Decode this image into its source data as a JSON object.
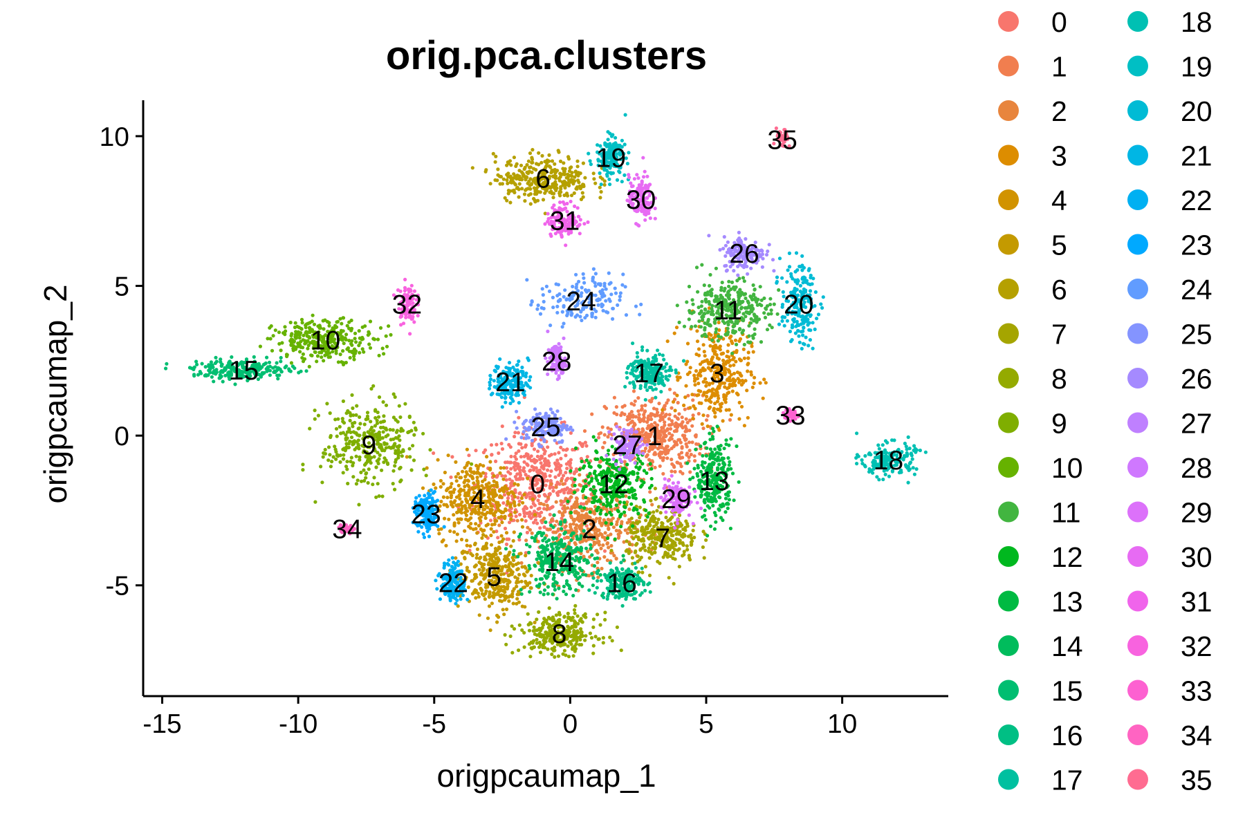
{
  "chart_data": {
    "type": "scatter",
    "title": "orig.pca.clusters",
    "xlabel": "origpcaumap_1",
    "ylabel": "origpcaumap_2",
    "xlim": [
      -15.7,
      13.9
    ],
    "ylim": [
      -8.7,
      11.2
    ],
    "x_ticks": [
      -15,
      -10,
      -5,
      0,
      5,
      10
    ],
    "y_ticks": [
      -5,
      0,
      5,
      10
    ],
    "x_tick_labels": [
      "-15",
      "-10",
      "-5",
      "0",
      "5",
      "10"
    ],
    "y_tick_labels": [
      "-5",
      "0",
      "5",
      "10"
    ],
    "grid": false,
    "legend_placement": "right",
    "legend_columns": 2,
    "series": [
      {
        "name": "0",
        "color": "#F8766D",
        "label_pos": [
          -1.2,
          -1.6
        ],
        "spread": [
          2.0,
          1.6
        ],
        "n": 520
      },
      {
        "name": "1",
        "color": "#F17E4F",
        "label_pos": [
          3.1,
          0.0
        ],
        "spread": [
          1.6,
          1.2
        ],
        "n": 420
      },
      {
        "name": "2",
        "color": "#E8853D",
        "label_pos": [
          0.7,
          -3.1
        ],
        "spread": [
          1.6,
          1.2
        ],
        "n": 380
      },
      {
        "name": "3",
        "color": "#DD8D00",
        "label_pos": [
          5.4,
          2.1
        ],
        "spread": [
          1.1,
          1.5
        ],
        "n": 320
      },
      {
        "name": "4",
        "color": "#D19300",
        "label_pos": [
          -3.4,
          -2.1
        ],
        "spread": [
          1.4,
          1.2
        ],
        "n": 360
      },
      {
        "name": "5",
        "color": "#C49A00",
        "label_pos": [
          -2.8,
          -4.7
        ],
        "spread": [
          1.2,
          1.1
        ],
        "n": 320
      },
      {
        "name": "6",
        "color": "#B5A000",
        "label_pos": [
          -1.0,
          8.6
        ],
        "spread": [
          1.6,
          0.7
        ],
        "n": 320
      },
      {
        "name": "7",
        "color": "#A5A500",
        "label_pos": [
          3.4,
          -3.4
        ],
        "spread": [
          1.2,
          0.9
        ],
        "n": 300
      },
      {
        "name": "8",
        "color": "#94AA00",
        "label_pos": [
          -0.4,
          -6.6
        ],
        "spread": [
          1.3,
          0.6
        ],
        "n": 280
      },
      {
        "name": "9",
        "color": "#7FAE00",
        "label_pos": [
          -7.4,
          -0.3
        ],
        "spread": [
          1.6,
          1.3
        ],
        "n": 320
      },
      {
        "name": "10",
        "color": "#66B200",
        "label_pos": [
          -9.0,
          3.2
        ],
        "spread": [
          1.7,
          0.6
        ],
        "n": 300
      },
      {
        "name": "11",
        "color": "#42B540",
        "label_pos": [
          5.8,
          4.2
        ],
        "spread": [
          1.4,
          0.9
        ],
        "n": 320
      },
      {
        "name": "12",
        "color": "#00B81F",
        "label_pos": [
          1.6,
          -1.6
        ],
        "spread": [
          1.2,
          1.0
        ],
        "n": 300
      },
      {
        "name": "13",
        "color": "#00BA42",
        "label_pos": [
          5.3,
          -1.5
        ],
        "spread": [
          0.6,
          1.2
        ],
        "n": 260
      },
      {
        "name": "14",
        "color": "#00BC5C",
        "label_pos": [
          -0.4,
          -4.2
        ],
        "spread": [
          1.2,
          1.0
        ],
        "n": 300
      },
      {
        "name": "15",
        "color": "#00BE71",
        "label_pos": [
          -12.0,
          2.2
        ],
        "spread": [
          1.7,
          0.3
        ],
        "n": 240
      },
      {
        "name": "16",
        "color": "#00BF84",
        "label_pos": [
          1.9,
          -4.9
        ],
        "spread": [
          0.7,
          0.5
        ],
        "n": 200
      },
      {
        "name": "17",
        "color": "#00C0A0",
        "label_pos": [
          2.9,
          2.1
        ],
        "spread": [
          0.7,
          0.6
        ],
        "n": 200
      },
      {
        "name": "18",
        "color": "#00C0B3",
        "label_pos": [
          11.7,
          -0.8
        ],
        "spread": [
          0.9,
          0.5
        ],
        "n": 170
      },
      {
        "name": "19",
        "color": "#00BFC4",
        "label_pos": [
          1.5,
          9.3
        ],
        "spread": [
          0.5,
          0.6
        ],
        "n": 170
      },
      {
        "name": "20",
        "color": "#00BBD5",
        "label_pos": [
          8.4,
          4.4
        ],
        "spread": [
          0.6,
          1.2
        ],
        "n": 190
      },
      {
        "name": "21",
        "color": "#00B6E4",
        "label_pos": [
          -2.2,
          1.8
        ],
        "spread": [
          0.6,
          0.6
        ],
        "n": 170
      },
      {
        "name": "22",
        "color": "#00B0F2",
        "label_pos": [
          -4.3,
          -4.9
        ],
        "spread": [
          0.4,
          0.6
        ],
        "n": 150
      },
      {
        "name": "23",
        "color": "#00A9FF",
        "label_pos": [
          -5.3,
          -2.6
        ],
        "spread": [
          0.4,
          0.6
        ],
        "n": 150
      },
      {
        "name": "24",
        "color": "#619CFF",
        "label_pos": [
          0.4,
          4.5
        ],
        "spread": [
          1.4,
          0.8
        ],
        "n": 160
      },
      {
        "name": "25",
        "color": "#8494FF",
        "label_pos": [
          -0.9,
          0.3
        ],
        "spread": [
          0.8,
          0.5
        ],
        "n": 150
      },
      {
        "name": "26",
        "color": "#A58AFF",
        "label_pos": [
          6.4,
          6.1
        ],
        "spread": [
          0.7,
          0.5
        ],
        "n": 150
      },
      {
        "name": "27",
        "color": "#BF80FF",
        "label_pos": [
          2.1,
          -0.3
        ],
        "spread": [
          0.5,
          0.5
        ],
        "n": 120
      },
      {
        "name": "28",
        "color": "#CF78FF",
        "label_pos": [
          -0.5,
          2.5
        ],
        "spread": [
          0.3,
          0.5
        ],
        "n": 110
      },
      {
        "name": "29",
        "color": "#DC71FA",
        "label_pos": [
          3.9,
          -2.1
        ],
        "spread": [
          0.5,
          0.6
        ],
        "n": 120
      },
      {
        "name": "30",
        "color": "#E76BF3",
        "label_pos": [
          2.6,
          7.9
        ],
        "spread": [
          0.4,
          0.7
        ],
        "n": 130
      },
      {
        "name": "31",
        "color": "#F064EB",
        "label_pos": [
          -0.2,
          7.2
        ],
        "spread": [
          0.6,
          0.5
        ],
        "n": 130
      },
      {
        "name": "32",
        "color": "#F863DF",
        "label_pos": [
          -6.0,
          4.4
        ],
        "spread": [
          0.3,
          0.6
        ],
        "n": 100
      },
      {
        "name": "33",
        "color": "#FD61D1",
        "label_pos": [
          8.1,
          0.7
        ],
        "spread": [
          0.2,
          0.2
        ],
        "n": 50
      },
      {
        "name": "34",
        "color": "#FF64C2",
        "label_pos": [
          -8.2,
          -3.1
        ],
        "spread": [
          0.3,
          0.1
        ],
        "n": 50
      },
      {
        "name": "35",
        "color": "#FF6C91",
        "label_pos": [
          7.8,
          9.9
        ],
        "spread": [
          0.2,
          0.3
        ],
        "n": 40
      }
    ]
  }
}
